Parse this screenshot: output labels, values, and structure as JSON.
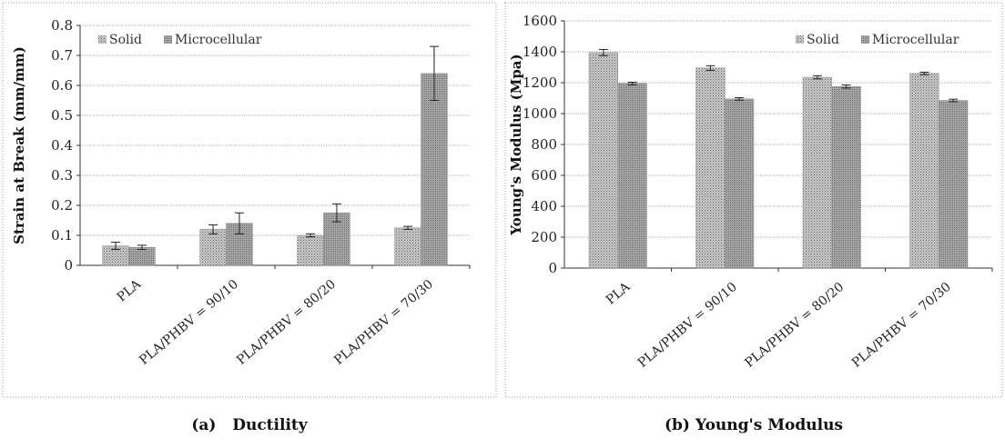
{
  "chart_data": [
    {
      "type": "bar",
      "ylabel": "Strain at Break (mm/mm)",
      "ylim": [
        0,
        0.8
      ],
      "yticks": [
        0,
        0.1,
        0.2,
        0.3,
        0.4,
        0.5,
        0.6,
        0.7,
        0.8
      ],
      "categories": [
        "PLA",
        "PLA/PHBV = 90/10",
        "PLA/PHBV = 80/20",
        "PLA/PHBV = 70/30"
      ],
      "series": [
        {
          "name": "Solid",
          "values": [
            0.065,
            0.12,
            0.1,
            0.125
          ],
          "errors": [
            0.012,
            0.015,
            0.005,
            0.005
          ]
        },
        {
          "name": "Microcellular",
          "values": [
            0.06,
            0.14,
            0.175,
            0.64
          ],
          "errors": [
            0.007,
            0.035,
            0.03,
            0.09
          ]
        }
      ],
      "grid": true,
      "legend_position": "top-left",
      "caption_label": "(a)",
      "caption_title": "Ductility"
    },
    {
      "type": "bar",
      "ylabel": "Young's Modulus (Mpa)",
      "ylim": [
        0,
        1600
      ],
      "yticks": [
        0,
        200,
        400,
        600,
        800,
        1000,
        1200,
        1400,
        1600
      ],
      "categories": [
        "PLA",
        "PLA/PHBV = 90/10",
        "PLA/PHBV = 80/20",
        "PLA/PHBV = 70/30"
      ],
      "series": [
        {
          "name": "Solid",
          "values": [
            1395,
            1295,
            1235,
            1260
          ],
          "errors": [
            20,
            15,
            10,
            8
          ]
        },
        {
          "name": "Microcellular",
          "values": [
            1195,
            1095,
            1175,
            1085
          ],
          "errors": [
            8,
            8,
            10,
            8
          ]
        }
      ],
      "grid": true,
      "legend_position": "top-right",
      "caption_label": "(b)",
      "caption_title": "Young's Modulus"
    }
  ]
}
